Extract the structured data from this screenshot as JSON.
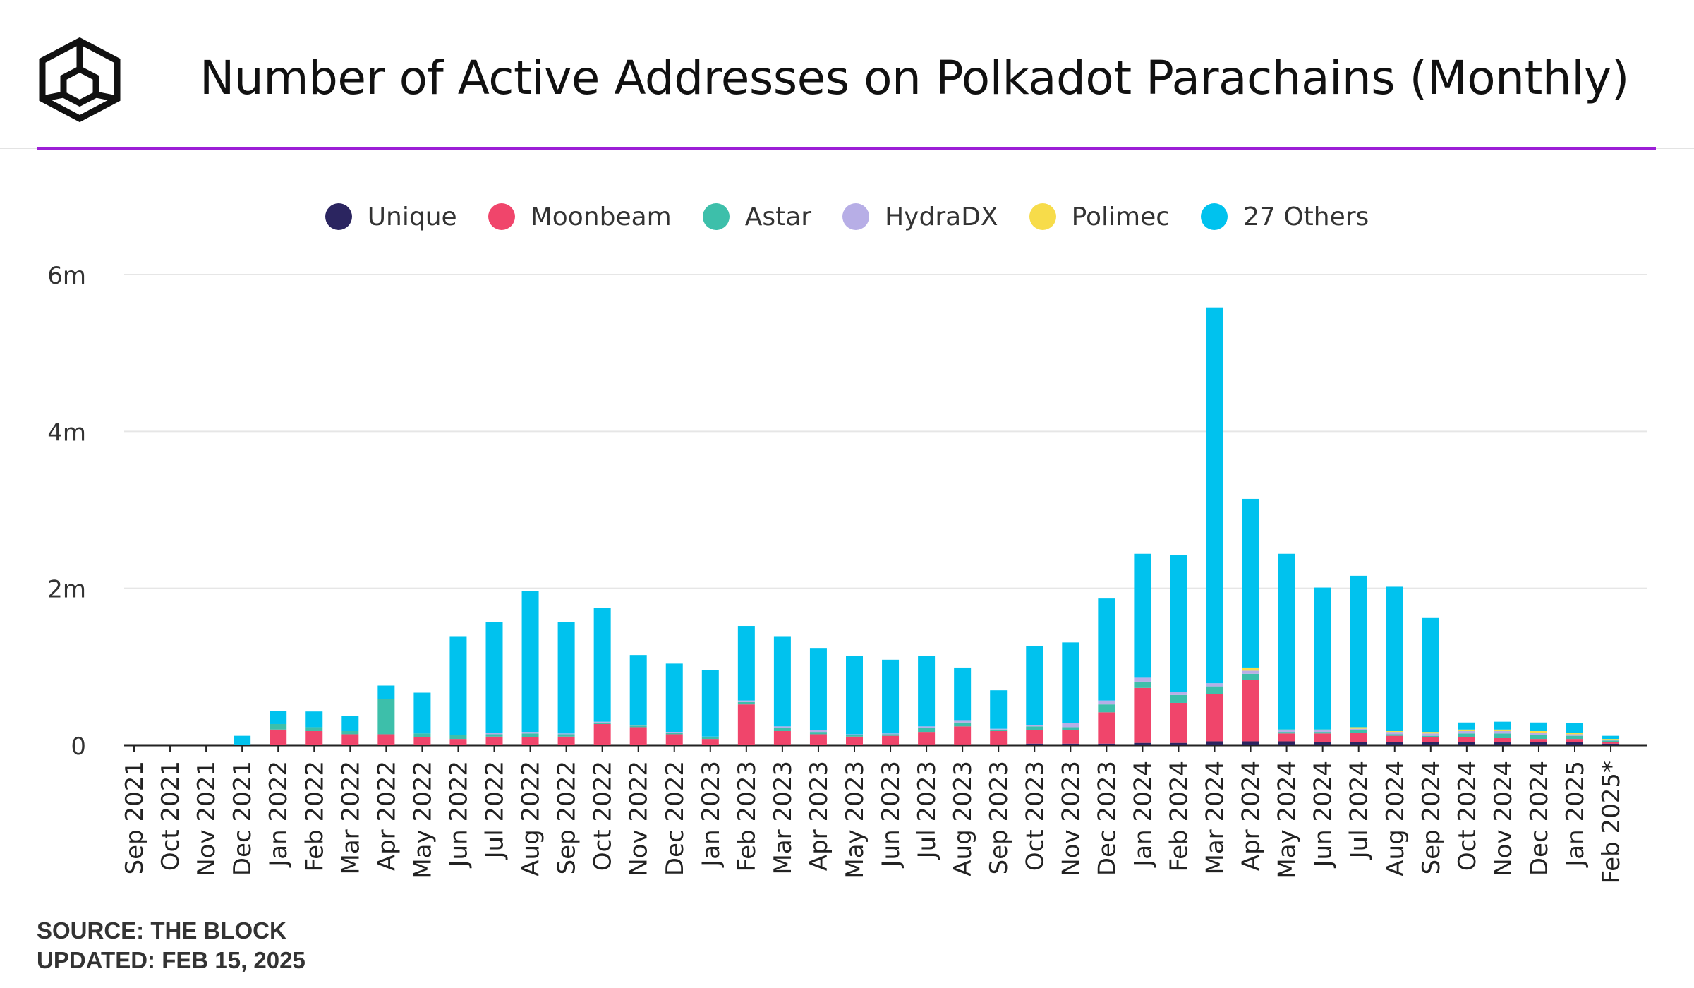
{
  "header": {
    "title": "Number of Active Addresses on Polkadot Parachains (Monthly)",
    "logo_icon": "the-block-cube-icon"
  },
  "footer": {
    "source": "SOURCE: THE BLOCK",
    "updated": "UPDATED: FEB 15, 2025"
  },
  "colors": {
    "accent": "#9c1fd6",
    "grid": "#e6e6e6",
    "axis": "#222222"
  },
  "chart_data": {
    "type": "bar",
    "stacked": true,
    "title": "Number of Active Addresses on Polkadot Parachains (Monthly)",
    "xlabel": "",
    "ylabel": "",
    "ylim": [
      0,
      6000000
    ],
    "y_ticks": [
      {
        "value": 0,
        "label": "0"
      },
      {
        "value": 2000000,
        "label": "2m"
      },
      {
        "value": 4000000,
        "label": "4m"
      },
      {
        "value": 6000000,
        "label": "6m"
      }
    ],
    "grid": true,
    "legend_position": "top-center",
    "categories": [
      "Sep 2021",
      "Oct 2021",
      "Nov 2021",
      "Dec 2021",
      "Jan 2022",
      "Feb 2022",
      "Mar 2022",
      "Apr 2022",
      "May 2022",
      "Jun 2022",
      "Jul 2022",
      "Aug 2022",
      "Sep 2022",
      "Oct 2022",
      "Nov 2022",
      "Dec 2022",
      "Jan 2023",
      "Feb 2023",
      "Mar 2023",
      "Apr 2023",
      "May 2023",
      "Jun 2023",
      "Jul 2023",
      "Aug 2023",
      "Sep 2023",
      "Oct 2023",
      "Nov 2023",
      "Dec 2023",
      "Jan 2024",
      "Feb 2024",
      "Mar 2024",
      "Apr 2024",
      "May 2024",
      "Jun 2024",
      "Jul 2024",
      "Aug 2024",
      "Sep 2024",
      "Oct 2024",
      "Nov 2024",
      "Dec 2024",
      "Jan 2025",
      "Feb 2025*"
    ],
    "series": [
      {
        "name": "Unique",
        "color": "#2b2560",
        "values": [
          0,
          0,
          0,
          0,
          0,
          0,
          0,
          0,
          0,
          0,
          0,
          0,
          0,
          0,
          0,
          0,
          0,
          0,
          10000,
          0,
          0,
          10000,
          10000,
          10000,
          10000,
          20000,
          20000,
          20000,
          30000,
          30000,
          50000,
          50000,
          50000,
          40000,
          40000,
          40000,
          40000,
          40000,
          40000,
          40000,
          40000,
          20000
        ]
      },
      {
        "name": "Moonbeam",
        "color": "#f0456b",
        "values": [
          0,
          0,
          0,
          0,
          200000,
          180000,
          140000,
          140000,
          100000,
          80000,
          110000,
          100000,
          110000,
          270000,
          230000,
          140000,
          80000,
          520000,
          170000,
          140000,
          110000,
          110000,
          160000,
          230000,
          170000,
          170000,
          170000,
          400000,
          700000,
          510000,
          600000,
          780000,
          100000,
          110000,
          120000,
          80000,
          60000,
          60000,
          50000,
          40000,
          40000,
          20000
        ]
      },
      {
        "name": "Astar",
        "color": "#3dbfaa",
        "values": [
          0,
          0,
          0,
          0,
          70000,
          50000,
          40000,
          450000,
          50000,
          50000,
          30000,
          50000,
          30000,
          20000,
          20000,
          20000,
          20000,
          30000,
          40000,
          30000,
          20000,
          20000,
          50000,
          50000,
          20000,
          50000,
          40000,
          100000,
          80000,
          100000,
          100000,
          80000,
          20000,
          20000,
          30000,
          20000,
          20000,
          50000,
          60000,
          50000,
          40000,
          20000
        ]
      },
      {
        "name": "HydraDX",
        "color": "#b7aee6",
        "values": [
          0,
          0,
          0,
          0,
          0,
          0,
          0,
          0,
          0,
          0,
          20000,
          20000,
          10000,
          10000,
          10000,
          10000,
          10000,
          20000,
          20000,
          20000,
          10000,
          10000,
          20000,
          30000,
          10000,
          20000,
          50000,
          50000,
          50000,
          40000,
          40000,
          40000,
          20000,
          20000,
          20000,
          30000,
          30000,
          30000,
          30000,
          30000,
          20000,
          10000
        ]
      },
      {
        "name": "Polimec",
        "color": "#f7dc4a",
        "values": [
          0,
          0,
          0,
          0,
          0,
          0,
          0,
          0,
          0,
          0,
          0,
          0,
          0,
          0,
          0,
          0,
          0,
          0,
          0,
          0,
          0,
          0,
          0,
          0,
          0,
          0,
          0,
          0,
          0,
          0,
          0,
          40000,
          10000,
          10000,
          20000,
          10000,
          20000,
          20000,
          20000,
          20000,
          20000,
          10000
        ]
      },
      {
        "name": "27 Others",
        "color": "#00c2ee",
        "values": [
          0,
          0,
          0,
          120000,
          170000,
          200000,
          190000,
          170000,
          520000,
          1260000,
          1410000,
          1800000,
          1420000,
          1450000,
          890000,
          870000,
          850000,
          950000,
          1150000,
          1050000,
          1000000,
          940000,
          900000,
          670000,
          490000,
          1000000,
          1030000,
          1300000,
          1580000,
          1740000,
          4790000,
          2150000,
          2240000,
          1810000,
          1930000,
          1840000,
          1460000,
          90000,
          100000,
          110000,
          120000,
          40000
        ]
      }
    ]
  }
}
